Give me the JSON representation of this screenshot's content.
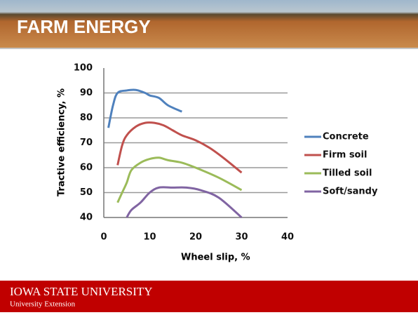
{
  "header": {
    "title": "FARM  ENERGY"
  },
  "footer": {
    "university": "IOWA STATE UNIVERSITY",
    "extension": "University Extension"
  },
  "chart_data": {
    "type": "line",
    "x_label": "Wheel slip, %",
    "y_label": "Tractive efficiency, %",
    "xlim": [
      0,
      40
    ],
    "xticks": [
      0,
      10,
      20,
      30,
      40
    ],
    "ylim": [
      40,
      100
    ],
    "yticks": [
      40,
      50,
      60,
      70,
      80,
      90,
      100
    ],
    "grid": true,
    "legend": "right",
    "series": [
      {
        "name": "Concrete",
        "color": "#4f81bd",
        "x": [
          1,
          2,
          3,
          5,
          7,
          9,
          10,
          12,
          14,
          17
        ],
        "values": [
          76,
          85,
          90,
          91,
          91.2,
          90,
          89,
          88,
          85,
          82.5
        ]
      },
      {
        "name": "Firm soil",
        "color": "#c0504d",
        "x": [
          3,
          4,
          5,
          7,
          9,
          11,
          13,
          15,
          17,
          20,
          23,
          26,
          30
        ],
        "values": [
          61,
          69,
          73,
          76.5,
          78,
          78,
          77,
          75,
          73,
          71,
          68,
          64,
          58
        ]
      },
      {
        "name": "Tilled soil",
        "color": "#9bbb59",
        "x": [
          3,
          4,
          5,
          6,
          8,
          10,
          12,
          14,
          17,
          20,
          25,
          30
        ],
        "values": [
          46,
          50,
          54,
          59,
          62,
          63.5,
          64,
          63,
          62,
          60,
          56,
          51
        ]
      },
      {
        "name": "Soft/sandy",
        "color": "#8064a2",
        "x": [
          5,
          6,
          8,
          10,
          12,
          15,
          18,
          21,
          25,
          30
        ],
        "values": [
          40,
          43,
          46,
          50,
          52,
          52,
          52,
          51,
          48,
          40
        ]
      }
    ]
  }
}
